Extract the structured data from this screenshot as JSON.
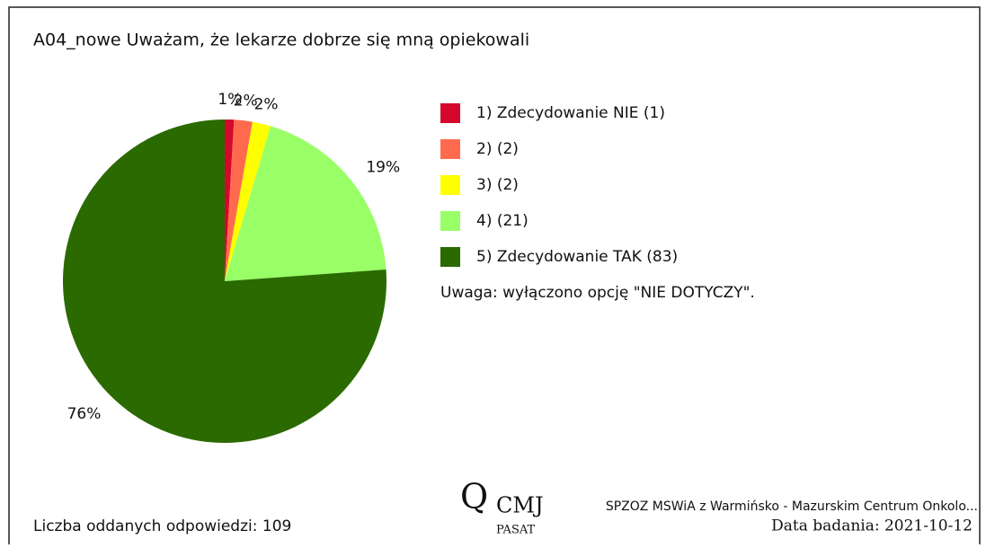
{
  "chart_data": {
    "type": "pie",
    "title": "A04_nowe Uważam, że lekarze dobrze się mną opiekowali",
    "categories": [
      "1) Zdecydowanie NIE (1)",
      "2)  (2)",
      "3)  (2)",
      "4)  (21)",
      "5) Zdecydowanie TAK (83)"
    ],
    "values": [
      0.92,
      1.83,
      1.83,
      19.27,
      76.15
    ],
    "value_labels": [
      "1%",
      "2%",
      "2%",
      "19%",
      "76%"
    ],
    "colors": [
      "#d4082c",
      "#ff6a4f",
      "#ffff00",
      "#99ff66",
      "#2b6a00"
    ],
    "note": "Uwaga: wyłączono opcję \"NIE DOTYCZY\"."
  },
  "footer": {
    "responses": "Liczba oddanych odpowiedzi: 109",
    "logo_top": "CMJ",
    "logo_bottom": "PASAT",
    "institution": "SPZOZ MSWiA z Warmińsko - Mazurskim Centrum Onkolo...",
    "date": "Data badania: 2021-10-12"
  }
}
